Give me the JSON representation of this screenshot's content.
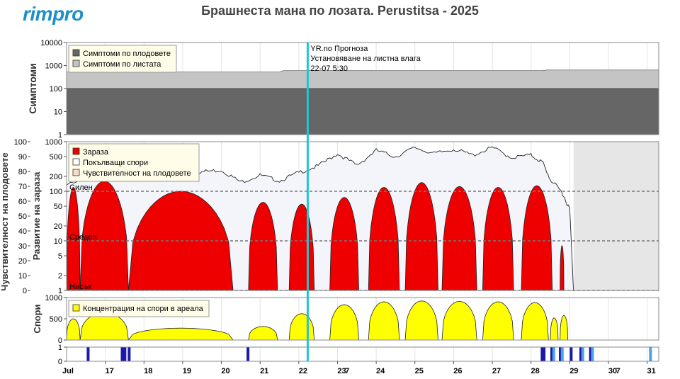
{
  "brand": {
    "logo_text": "rimpro",
    "color": "#1e8fc9"
  },
  "title": "Брашнеста мана по лозата.  Perustitsa - 2025",
  "marker": {
    "color": "#22c6d2",
    "time": "22-07 5:30",
    "line1": "YR.no Прогноза",
    "line2": "Установяване на листна влага",
    "line3": "22-07 5:30"
  },
  "x_axis": {
    "start_label": "Jul",
    "day_labels": [
      {
        "day": "17",
        "pos": 1.0
      },
      {
        "day": "18",
        "pos": 2.0
      },
      {
        "day": "19",
        "pos": 3.0
      },
      {
        "day": "20",
        "pos": 4.0
      },
      {
        "day": "21",
        "pos": 5.0
      },
      {
        "day": "22",
        "pos": 6.0
      },
      {
        "day": "23",
        "pos": 7.0
      },
      {
        "day": "24",
        "pos": 8.0
      },
      {
        "day": "25",
        "pos": 9.0
      },
      {
        "day": "26",
        "pos": 10.0
      },
      {
        "day": "27",
        "pos": 11.0
      },
      {
        "day": "28",
        "pos": 12.0
      },
      {
        "day": "29",
        "pos": 13.0
      },
      {
        "day": "30",
        "pos": 14.0
      },
      {
        "day": "31",
        "pos": 15.0
      }
    ],
    "week_labels": [
      {
        "text": "7",
        "pos": 7.25
      },
      {
        "text": "7",
        "pos": 14.25
      }
    ]
  },
  "chart_data": [
    {
      "type": "area",
      "panel": "symptoms",
      "ylabel": "Симптоми",
      "scale": "log",
      "ylim": [
        1,
        10000
      ],
      "yticks": [
        "1",
        "10",
        "100",
        "1000",
        "10000"
      ],
      "legend": [
        "Симптоми по плодовете",
        "Симптоми по листата"
      ],
      "series": [
        {
          "name": "Симптоми по плодовете",
          "color": "#666666",
          "value": 100
        },
        {
          "name": "Симптоми по листата",
          "color": "#c4c4c4",
          "x": [
            0,
            5.5,
            5.6,
            12.3,
            12.4,
            15.3
          ],
          "values": [
            520,
            520,
            600,
            600,
            640,
            640
          ]
        }
      ]
    },
    {
      "type": "area",
      "panel": "infection",
      "ylabel": "Развитие на зараза",
      "ylabel_left": "Чувствителност на плодовете",
      "scale": "log",
      "ylim": [
        1,
        1000
      ],
      "yticks": [
        "1",
        "2",
        "5",
        "10",
        "20",
        "50",
        "100",
        "200",
        "500",
        "1000"
      ],
      "left_ticks": [
        "0",
        "10",
        "20",
        "30",
        "40",
        "50",
        "60",
        "70",
        "80",
        "90",
        "100"
      ],
      "levels": [
        {
          "label": "Силен",
          "value": 100
        },
        {
          "label": "Среден",
          "value": 10
        },
        {
          "label": "Нисък",
          "value": 1
        }
      ],
      "legend": [
        "Зараза",
        "Покълващи спори",
        "Чувствителност на плодовете"
      ],
      "spores_line": {
        "x": [
          0,
          1,
          1.5,
          2,
          2.5,
          3,
          3.5,
          4,
          4.5,
          5,
          5.5,
          6,
          6.5,
          7,
          7.5,
          8,
          8.5,
          9,
          9.5,
          10,
          10.5,
          11,
          11.5,
          12,
          12.3,
          12.5,
          12.8,
          13.0,
          13.1
        ],
        "values": [
          140,
          220,
          250,
          230,
          200,
          240,
          260,
          280,
          160,
          220,
          170,
          250,
          340,
          600,
          350,
          700,
          520,
          800,
          600,
          740,
          560,
          800,
          500,
          560,
          400,
          180,
          100,
          45,
          1
        ]
      },
      "infection_humps": [
        {
          "start": 0.0,
          "end": 0.35,
          "peak": 120
        },
        {
          "start": 0.35,
          "end": 1.6,
          "peak": 160
        },
        {
          "start": 1.6,
          "end": 4.3,
          "peak": 100
        },
        {
          "start": 4.7,
          "end": 5.45,
          "peak": 60
        },
        {
          "start": 5.75,
          "end": 6.4,
          "peak": 55
        },
        {
          "start": 6.8,
          "end": 7.55,
          "peak": 75
        },
        {
          "start": 7.8,
          "end": 8.6,
          "peak": 120
        },
        {
          "start": 8.75,
          "end": 9.6,
          "peak": 150
        },
        {
          "start": 9.7,
          "end": 10.6,
          "peak": 125
        },
        {
          "start": 10.75,
          "end": 11.55,
          "peak": 120
        },
        {
          "start": 11.75,
          "end": 12.55,
          "peak": 130
        },
        {
          "start": 12.75,
          "end": 12.85,
          "peak": 8
        }
      ]
    },
    {
      "type": "area",
      "panel": "spores",
      "ylabel": "Спори",
      "ylim": [
        0,
        1000
      ],
      "yticks": [
        "0",
        "500",
        "1000"
      ],
      "legend": [
        "Концентрация на спори в ареала"
      ],
      "humps": [
        {
          "start": 0.0,
          "end": 0.35,
          "peak": 500
        },
        {
          "start": 0.35,
          "end": 1.6,
          "peak": 650
        },
        {
          "start": 1.6,
          "end": 4.3,
          "peak": 280
        },
        {
          "start": 4.7,
          "end": 5.45,
          "peak": 320
        },
        {
          "start": 5.75,
          "end": 6.4,
          "peak": 620
        },
        {
          "start": 6.8,
          "end": 7.55,
          "peak": 830
        },
        {
          "start": 7.8,
          "end": 8.6,
          "peak": 900
        },
        {
          "start": 8.75,
          "end": 9.6,
          "peak": 920
        },
        {
          "start": 9.7,
          "end": 10.6,
          "peak": 910
        },
        {
          "start": 10.75,
          "end": 11.55,
          "peak": 900
        },
        {
          "start": 11.75,
          "end": 12.45,
          "peak": 880
        },
        {
          "start": 12.5,
          "end": 12.7,
          "peak": 520
        },
        {
          "start": 12.75,
          "end": 12.95,
          "peak": 580
        }
      ]
    },
    {
      "type": "bar",
      "panel": "wetness",
      "ylim": [
        0,
        1
      ],
      "yticks": [
        "0",
        "1"
      ],
      "events": [
        {
          "x": 0.52,
          "color": "#1b1ba8"
        },
        {
          "x": 1.4,
          "color": "#1b1ba8"
        },
        {
          "x": 1.47,
          "color": "#1b1ba8"
        },
        {
          "x": 1.58,
          "color": "#1b1ba8"
        },
        {
          "x": 4.65,
          "color": "#1b1ba8"
        },
        {
          "x": 12.25,
          "color": "#1b1ba8"
        },
        {
          "x": 12.3,
          "color": "#1b1ba8"
        },
        {
          "x": 12.5,
          "color": "#1b1ba8"
        },
        {
          "x": 12.55,
          "color": "#4aa3e8"
        },
        {
          "x": 12.72,
          "color": "#1b1ba8"
        },
        {
          "x": 12.77,
          "color": "#4aa3e8"
        },
        {
          "x": 13.0,
          "color": "#1b1ba8"
        },
        {
          "x": 13.25,
          "color": "#1b1ba8"
        },
        {
          "x": 13.3,
          "color": "#4aa3e8"
        },
        {
          "x": 13.5,
          "color": "#1b1ba8"
        },
        {
          "x": 13.55,
          "color": "#4aa3e8"
        },
        {
          "x": 15.05,
          "color": "#4aa3e8"
        }
      ]
    }
  ]
}
